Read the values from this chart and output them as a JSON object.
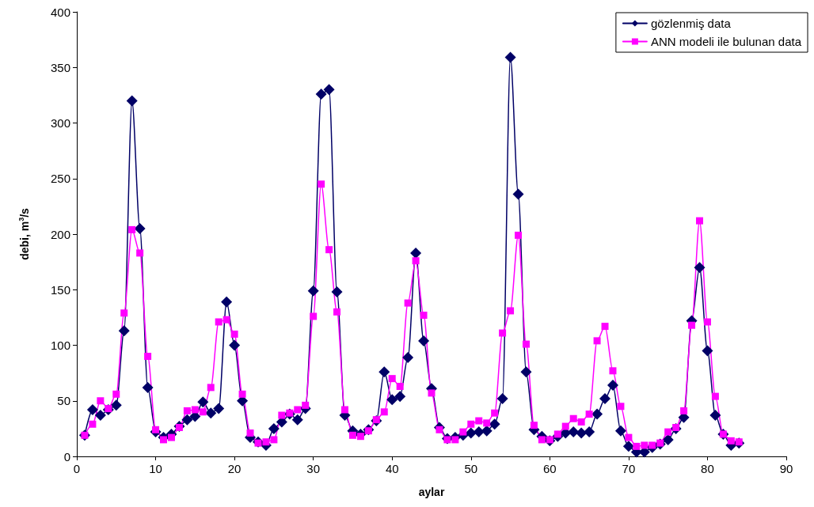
{
  "chart_data": {
    "type": "line",
    "xlabel": "aylar",
    "ylabel": "debi, m$^{3}$/s",
    "x": [
      1,
      2,
      3,
      4,
      5,
      6,
      7,
      8,
      9,
      10,
      11,
      12,
      13,
      14,
      15,
      16,
      17,
      18,
      19,
      20,
      21,
      22,
      23,
      24,
      25,
      26,
      27,
      28,
      29,
      30,
      31,
      32,
      33,
      34,
      35,
      36,
      37,
      38,
      39,
      40,
      41,
      42,
      43,
      44,
      45,
      46,
      47,
      48,
      49,
      50,
      51,
      52,
      53,
      54,
      55,
      56,
      57,
      58,
      59,
      60,
      61,
      62,
      63,
      64,
      65,
      66,
      67,
      68,
      69,
      70,
      71,
      72,
      73,
      74,
      75,
      76,
      77,
      78,
      79,
      80,
      81,
      82,
      83,
      84
    ],
    "series": [
      {
        "name": "gözlenmiş data",
        "color": "#000066",
        "marker": "diamond",
        "values": [
          19,
          42,
          37,
          42,
          46,
          113,
          320,
          205,
          62,
          22,
          17,
          20,
          27,
          33,
          36,
          49,
          39,
          43,
          139,
          100,
          50,
          17,
          13,
          10,
          25,
          31,
          38,
          33,
          43,
          149,
          326,
          330,
          148,
          37,
          23,
          20,
          24,
          32,
          76,
          51,
          54,
          89,
          183,
          104,
          61,
          26,
          16,
          17,
          19,
          21,
          22,
          23,
          29,
          52,
          359,
          236,
          76,
          24,
          18,
          14,
          18,
          21,
          22,
          21,
          22,
          38,
          52,
          64,
          23,
          9,
          4,
          4,
          8,
          11,
          15,
          25,
          35,
          122,
          170,
          95,
          37,
          20,
          10,
          12
        ]
      },
      {
        "name": "ANN modeli ile bulunan data",
        "color": "#ff00ff",
        "marker": "square",
        "values": [
          19,
          29,
          50,
          43,
          56,
          129,
          204,
          183,
          90,
          24,
          15,
          17,
          26,
          41,
          42,
          40,
          62,
          121,
          123,
          110,
          56,
          21,
          12,
          13,
          15,
          37,
          39,
          42,
          46,
          126,
          245,
          186,
          130,
          42,
          19,
          18,
          23,
          33,
          40,
          70,
          63,
          138,
          176,
          127,
          57,
          24,
          15,
          15,
          22,
          29,
          32,
          30,
          39,
          111,
          131,
          199,
          101,
          28,
          15,
          15,
          20,
          27,
          34,
          31,
          38,
          104,
          117,
          77,
          45,
          17,
          9,
          10,
          10,
          12,
          22,
          26,
          41,
          118,
          212,
          121,
          54,
          20,
          14,
          13
        ]
      }
    ],
    "xlim": [
      0,
      90
    ],
    "xticks": [
      0,
      10,
      20,
      30,
      40,
      50,
      60,
      70,
      80,
      90
    ],
    "ylim": [
      0,
      400
    ],
    "yticks": [
      0,
      50,
      100,
      150,
      200,
      250,
      300,
      350,
      400
    ],
    "grid": false,
    "legend": "top right",
    "line_style": "solid"
  }
}
